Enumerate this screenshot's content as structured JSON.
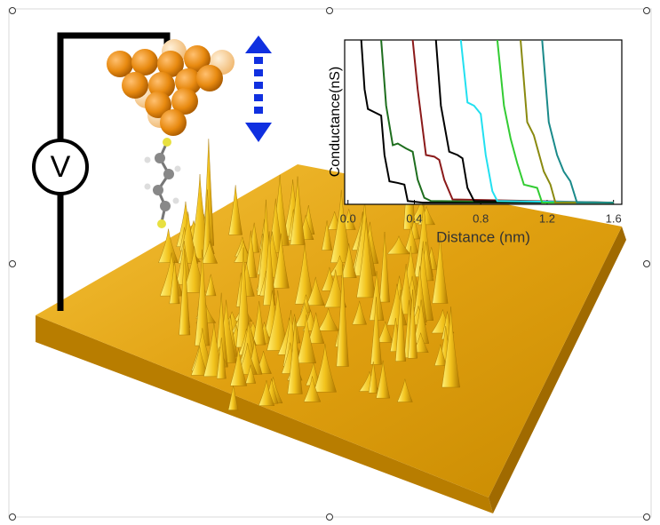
{
  "chart_data": {
    "type": "line",
    "xlabel": "Distance (nm)",
    "ylabel": "Conductance(nS)",
    "xlim": [
      -0.02,
      1.65
    ],
    "ylim": [
      0,
      10
    ],
    "xticks": [
      {
        "value": 0,
        "label": "0.0"
      },
      0.4,
      0.8,
      1.2,
      1.6
    ],
    "series": [
      {
        "color": "#000000",
        "x": [
          0.08,
          0.1,
          0.12,
          0.16,
          0.2,
          0.22,
          0.25,
          0.3,
          0.34,
          0.36,
          0.45,
          1.0,
          1.6
        ],
        "values": [
          10,
          7,
          5.8,
          5.6,
          5.4,
          3,
          1.4,
          1.3,
          1.2,
          0.2,
          0.1,
          0.1,
          0.1
        ]
      },
      {
        "color": "#1e6e1e",
        "x": [
          0.2,
          0.23,
          0.27,
          0.3,
          0.35,
          0.39,
          0.42,
          0.46,
          0.5,
          1.6
        ],
        "values": [
          10,
          6,
          3.6,
          3.7,
          3.4,
          3.2,
          1.5,
          0.4,
          0.2,
          0.1
        ]
      },
      {
        "color": "#8b1a1a",
        "x": [
          0.39,
          0.42,
          0.47,
          0.52,
          0.55,
          0.58,
          0.63,
          1.6
        ],
        "values": [
          10,
          7,
          3.0,
          2.9,
          2.7,
          1.5,
          0.3,
          0.1
        ]
      },
      {
        "color": "#000000",
        "x": [
          0.53,
          0.56,
          0.61,
          0.66,
          0.69,
          0.72,
          0.76,
          1.6
        ],
        "values": [
          10,
          6,
          3.2,
          3.0,
          2.8,
          1.0,
          0.2,
          0.1
        ]
      },
      {
        "color": "#22e0f0",
        "x": [
          0.68,
          0.72,
          0.76,
          0.8,
          0.83,
          0.87,
          0.9,
          1.6
        ],
        "values": [
          10,
          6.2,
          6.0,
          5.5,
          3,
          0.8,
          0.2,
          0.1
        ]
      },
      {
        "color": "#33cc33",
        "x": [
          0.9,
          0.94,
          0.98,
          1.02,
          1.06,
          1.1,
          1.14,
          1.17,
          1.6
        ],
        "values": [
          10,
          6,
          4,
          2.5,
          1.2,
          1.1,
          1.0,
          0.1,
          0.1
        ]
      },
      {
        "color": "#8a8a10",
        "x": [
          1.04,
          1.08,
          1.12,
          1.18,
          1.22,
          1.25,
          1.6
        ],
        "values": [
          10,
          5,
          4.2,
          2,
          1.2,
          0.1,
          0.1
        ]
      },
      {
        "color": "#1a8a8a",
        "x": [
          1.17,
          1.21,
          1.26,
          1.3,
          1.34,
          1.38,
          1.6
        ],
        "values": [
          10,
          5,
          3,
          2,
          1.4,
          0.1,
          0.1
        ]
      }
    ]
  },
  "illustration": {
    "voltmeter_label": "V"
  }
}
